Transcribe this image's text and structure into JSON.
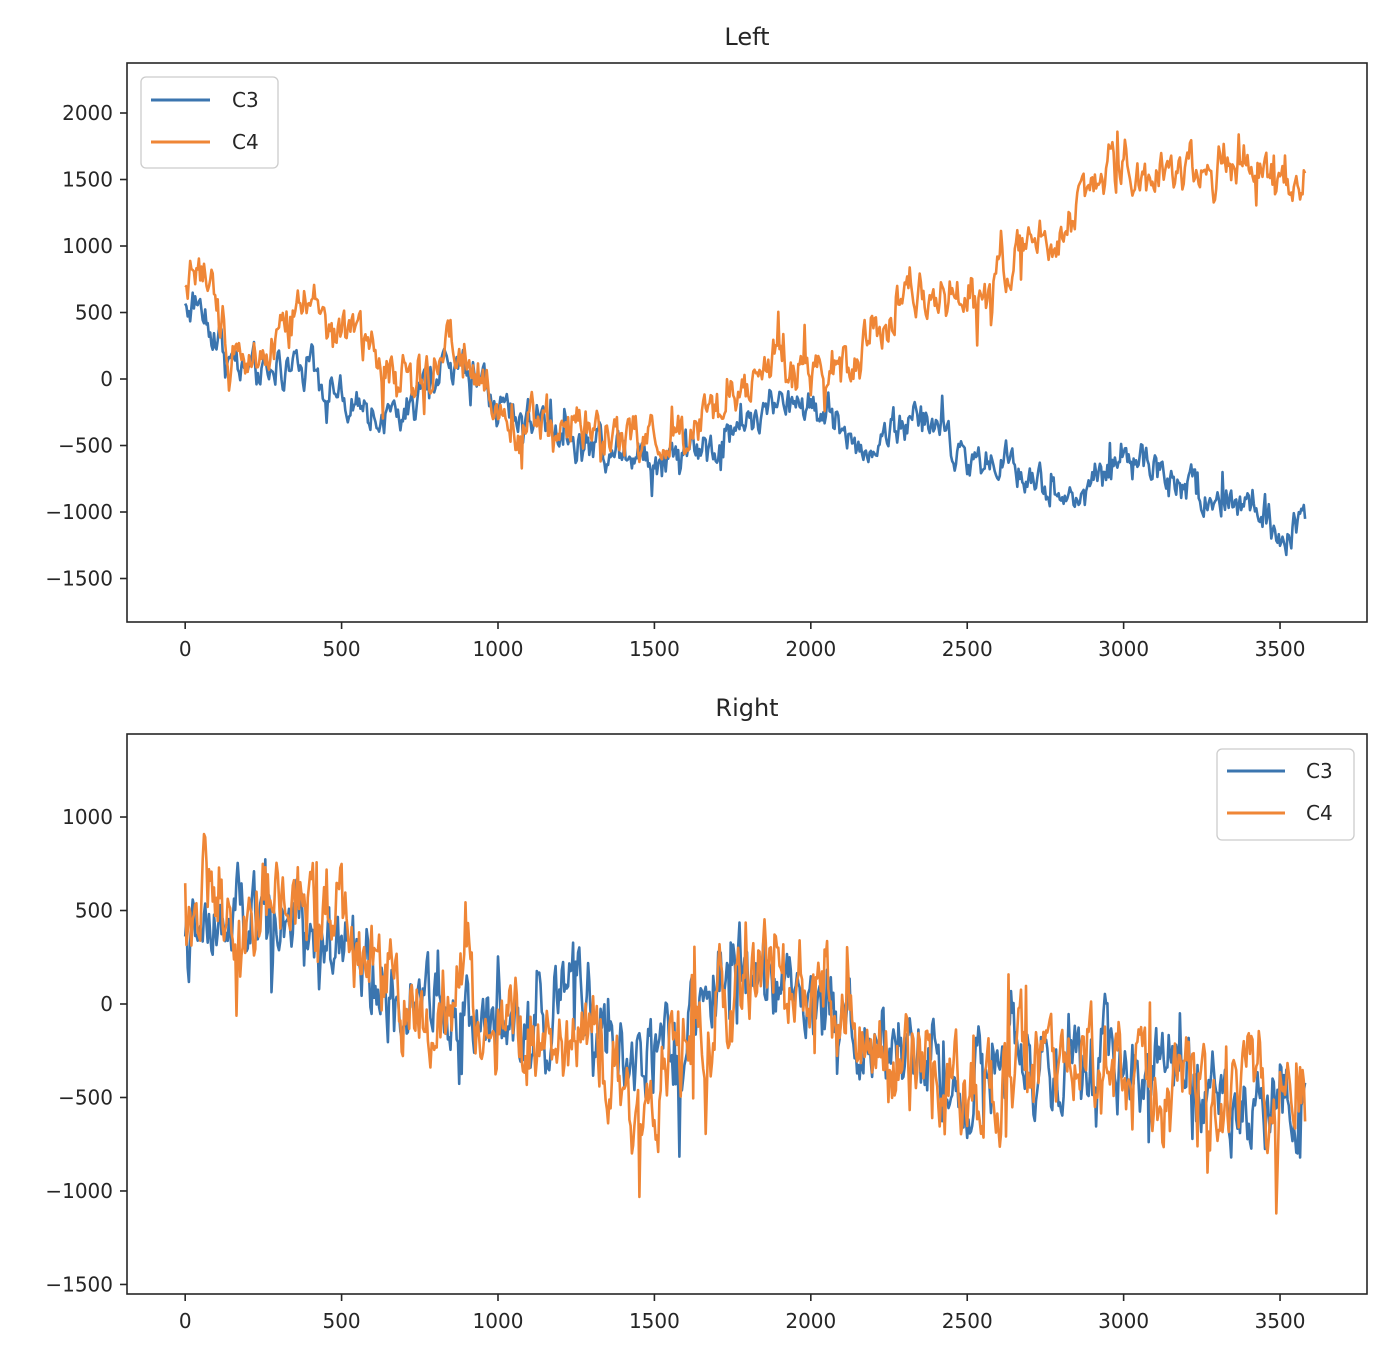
{
  "chart_data": [
    {
      "type": "line",
      "title": "Left",
      "xlabel": "",
      "ylabel": "",
      "xlim": [
        -186,
        3778
      ],
      "ylim": [
        -1827,
        2376
      ],
      "xticks": [
        0,
        500,
        1000,
        1500,
        2000,
        2500,
        3000,
        3500
      ],
      "xtick_labels": [
        "0",
        "500",
        "1000",
        "1500",
        "2000",
        "2500",
        "3000",
        "3500"
      ],
      "yticks": [
        -1500,
        -1000,
        -500,
        0,
        500,
        1000,
        1500,
        2000
      ],
      "ytick_labels": [
        "−1500",
        "−1000",
        "−500",
        "0",
        "500",
        "1000",
        "1500",
        "2000"
      ],
      "grid": false,
      "legend_position": "top-left",
      "n_points": 3584,
      "series": [
        {
          "name": "C3",
          "color": "#3b75af",
          "trend_x": [
            0,
            50,
            150,
            250,
            400,
            500,
            700,
            850,
            1000,
            1150,
            1300,
            1500,
            1650,
            1800,
            2000,
            2150,
            2350,
            2500,
            2700,
            2850,
            3000,
            3150,
            3300,
            3450,
            3500,
            3583
          ],
          "trend_y": [
            550,
            550,
            150,
            0,
            150,
            -200,
            -350,
            150,
            -200,
            -300,
            -500,
            -580,
            -500,
            -300,
            -150,
            -500,
            -250,
            -600,
            -700,
            -950,
            -500,
            -750,
            -850,
            -1000,
            -1300,
            -1050
          ],
          "noise_amplitude": 180
        },
        {
          "name": "C4",
          "color": "#ef8636",
          "trend_x": [
            0,
            40,
            150,
            250,
            350,
            550,
            700,
            850,
            1000,
            1150,
            1300,
            1500,
            1700,
            1900,
            2000,
            2150,
            2300,
            2500,
            2700,
            2850,
            3000,
            3050,
            3150,
            3300,
            3450,
            3500,
            3583
          ],
          "trend_y": [
            700,
            850,
            250,
            200,
            500,
            300,
            -50,
            200,
            -200,
            -350,
            -400,
            -450,
            -250,
            50,
            0,
            150,
            600,
            550,
            1000,
            1250,
            1750,
            1500,
            1550,
            1650,
            1450,
            1300,
            1550
          ],
          "noise_amplitude": 230
        }
      ]
    },
    {
      "type": "line",
      "title": "Right",
      "xlabel": "",
      "ylabel": "",
      "xlim": [
        -186,
        3778
      ],
      "ylim": [
        -1551,
        1444
      ],
      "xticks": [
        0,
        500,
        1000,
        1500,
        2000,
        2500,
        3000,
        3500
      ],
      "xtick_labels": [
        "0",
        "500",
        "1000",
        "1500",
        "2000",
        "2500",
        "3000",
        "3500"
      ],
      "yticks": [
        -1500,
        -1000,
        -500,
        0,
        500,
        1000
      ],
      "ytick_labels": [
        "−1500",
        "−1000",
        "−500",
        "0",
        "500",
        "1000"
      ],
      "grid": false,
      "legend_position": "top-right",
      "n_points": 3584,
      "series": [
        {
          "name": "C3",
          "color": "#3b75af",
          "trend_x": [
            0,
            150,
            300,
            500,
            700,
            900,
            1100,
            1280,
            1400,
            1550,
            1750,
            2000,
            2200,
            2500,
            2800,
            3000,
            3200,
            3400,
            3583
          ],
          "trend_y": [
            350,
            350,
            450,
            300,
            0,
            0,
            -150,
            150,
            -400,
            -250,
            150,
            100,
            -200,
            -400,
            -350,
            -300,
            -400,
            -550,
            -400
          ],
          "noise_amplitude": 280
        },
        {
          "name": "C4",
          "color": "#ef8636",
          "trend_x": [
            0,
            150,
            300,
            500,
            700,
            900,
            1100,
            1280,
            1420,
            1550,
            1750,
            2000,
            2200,
            2500,
            2800,
            3000,
            3200,
            3400,
            3583
          ],
          "trend_y": [
            500,
            500,
            550,
            450,
            50,
            0,
            -200,
            -100,
            -650,
            -300,
            100,
            100,
            -250,
            -400,
            -400,
            -350,
            -450,
            -500,
            -400
          ],
          "noise_amplitude": 330
        }
      ]
    }
  ]
}
